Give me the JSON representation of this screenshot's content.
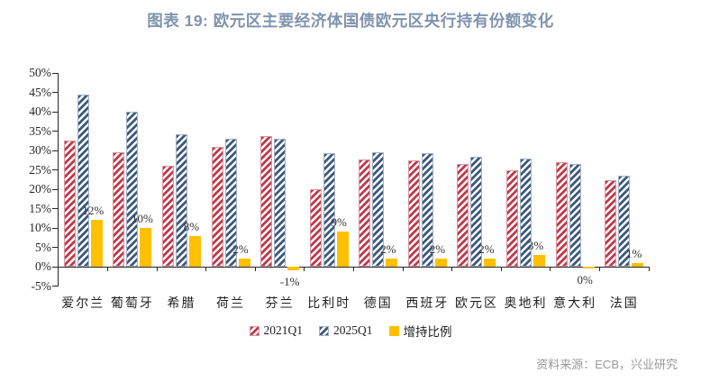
{
  "title": "图表 19: 欧元区主要经济体国债欧元区央行持有份额变化",
  "source": "资料来源：ECB，兴业研究",
  "colors": {
    "title": "#8093ad",
    "red_hatch": "#c13a4a",
    "blue_hatch": "#3d5a7f",
    "yellow": "#ffc000",
    "axis": "#262626",
    "source_text": "#999999"
  },
  "chart_data": {
    "type": "bar",
    "title": "图表 19: 欧元区主要经济体国债欧元区央行持有份额变化",
    "categories": [
      "爱尔兰",
      "葡萄牙",
      "希腊",
      "荷兰",
      "芬兰",
      "比利时",
      "德国",
      "西班牙",
      "欧元区",
      "奥地利",
      "意大利",
      "法国"
    ],
    "series": [
      {
        "name": "2021Q1",
        "style": "hatch-red",
        "values": [
          32.5,
          29.6,
          26.0,
          30.9,
          33.8,
          20.1,
          27.6,
          27.4,
          26.4,
          25.0,
          26.9,
          22.4
        ]
      },
      {
        "name": "2025Q1",
        "style": "hatch-blue",
        "values": [
          44.4,
          39.9,
          34.2,
          33.0,
          33.0,
          29.4,
          29.6,
          29.4,
          28.3,
          28.0,
          26.4,
          23.6
        ]
      },
      {
        "name": "增持比例",
        "style": "solid-yellow",
        "values": [
          12,
          10,
          8,
          2,
          -1,
          9,
          2,
          2,
          2,
          3,
          0,
          1
        ],
        "data_labels": [
          "12%",
          "10%",
          "8%",
          "2%",
          "-1%",
          "9%",
          "2%",
          "2%",
          "2%",
          "3%",
          "0%",
          "1%"
        ]
      }
    ],
    "ylabel": "",
    "xlabel": "",
    "ylim": [
      -5,
      50
    ],
    "ytick_values": [
      50,
      45,
      40,
      35,
      30,
      25,
      20,
      15,
      10,
      5,
      0,
      -5
    ],
    "ytick_labels": [
      "50%",
      "45%",
      "40%",
      "35%",
      "30%",
      "25%",
      "20%",
      "15%",
      "10%",
      "5%",
      "0%",
      "-5%"
    ],
    "grid": false,
    "legend_position": "bottom"
  }
}
